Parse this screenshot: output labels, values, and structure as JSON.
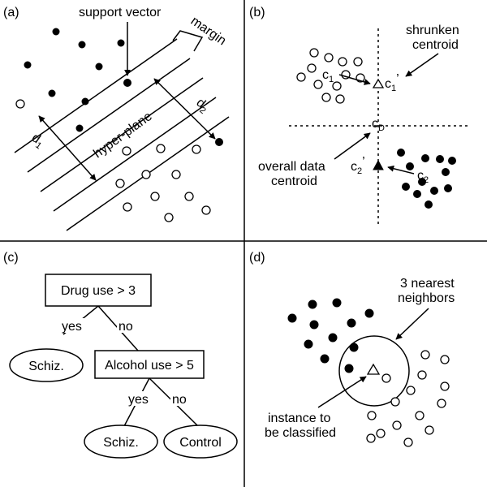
{
  "panel_a": {
    "tag": "(a)",
    "support_vector": "support vector",
    "margin": "margin",
    "hyper_plane": "hyper-plane",
    "d1": "d",
    "d1_sub": "1",
    "d2": "d",
    "d2_sub": "2"
  },
  "panel_b": {
    "tag": "(b)",
    "shrunken_1": "shrunken",
    "shrunken_2": "centroid",
    "c1": "c",
    "c1_sub": "1",
    "c1p": "c",
    "c1p_sub": "1",
    "c1p_prime": "’",
    "cd": "c",
    "cd_sub": "D",
    "overall_1": "overall data",
    "overall_2": "centroid",
    "c2p": "c",
    "c2p_sub": "2",
    "c2p_prime": "’",
    "c2": "c",
    "c2_sub": "2"
  },
  "panel_c": {
    "tag": "(c)",
    "root": "Drug use > 3",
    "yes1": "yes",
    "no1": "no",
    "leaf1": "Schiz.",
    "node2": "Alcohol use > 5",
    "yes2": "yes",
    "no2": "no",
    "leaf2": "Schiz.",
    "leaf3": "Control"
  },
  "panel_d": {
    "tag": "(d)",
    "nn_1": "3 nearest",
    "nn_2": "neighbors",
    "inst_1": "instance to",
    "inst_2": "be classified"
  }
}
